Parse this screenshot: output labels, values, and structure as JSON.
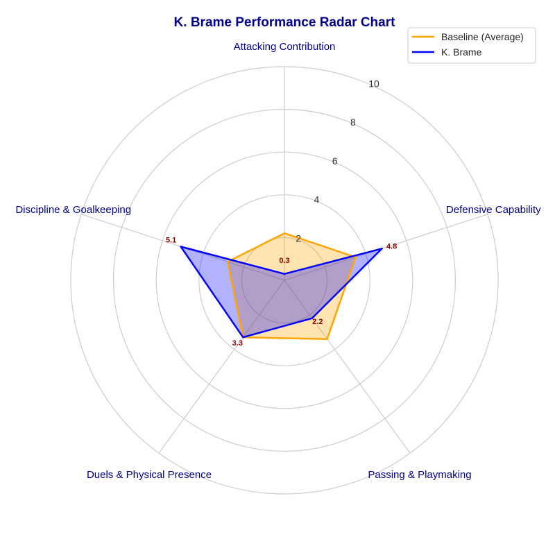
{
  "chart_data": {
    "type": "radar",
    "title": "K. Brame Performance Radar Chart",
    "categories": [
      "Attacking Contribution",
      "Defensive Capability",
      "Passing & Playmaking",
      "Duels & Physical Presence",
      "Discipline & Goalkeeping"
    ],
    "rlim": [
      0,
      10
    ],
    "rticks": [
      2,
      4,
      6,
      8,
      10
    ],
    "grid": true,
    "legend_position": "top-right",
    "series": [
      {
        "name": "Baseline (Average)",
        "values": [
          2.2,
          3.5,
          3.4,
          3.3,
          2.8
        ],
        "color": "#ffa500",
        "fill_color": "#ffa500"
      },
      {
        "name": "K. Brame",
        "values": [
          0.3,
          4.8,
          2.2,
          3.3,
          5.1
        ],
        "color": "#0000ff",
        "fill_color": "#0000ff"
      }
    ],
    "data_labels": [
      "0.3",
      "4.8",
      "2.2",
      "3.3",
      "5.1"
    ]
  }
}
